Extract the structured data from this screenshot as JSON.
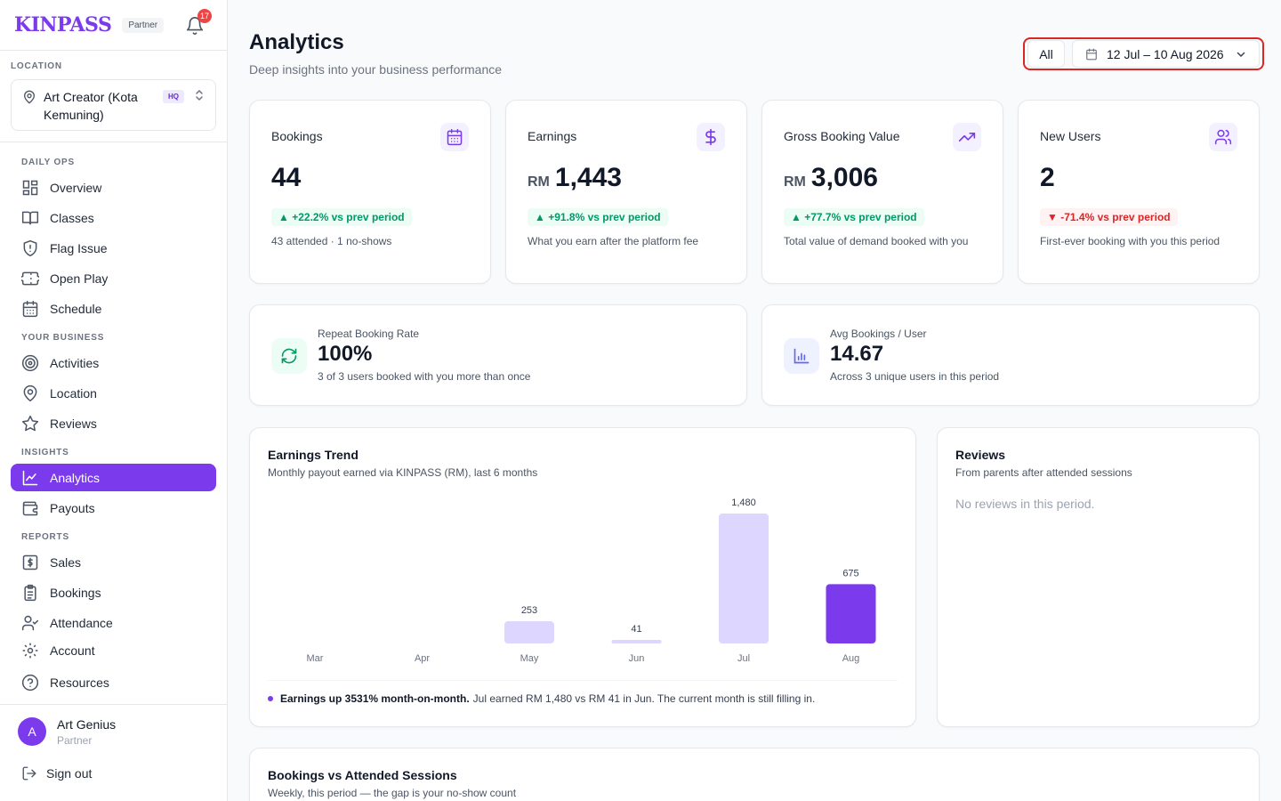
{
  "brand": {
    "logo_text": "KINPASS",
    "badge": "Partner",
    "notification_count": "17"
  },
  "location": {
    "section_label": "LOCATION",
    "name": "Art Creator (Kota Kemuning)",
    "badge": "HQ"
  },
  "nav": {
    "daily_ops_label": "DAILY OPS",
    "your_business_label": "YOUR BUSINESS",
    "insights_label": "INSIGHTS",
    "reports_label": "REPORTS",
    "items": [
      {
        "label": "Overview"
      },
      {
        "label": "Classes"
      },
      {
        "label": "Flag Issue"
      },
      {
        "label": "Open Play"
      },
      {
        "label": "Schedule"
      },
      {
        "label": "Activities"
      },
      {
        "label": "Location"
      },
      {
        "label": "Reviews"
      },
      {
        "label": "Analytics"
      },
      {
        "label": "Payouts"
      },
      {
        "label": "Sales"
      },
      {
        "label": "Bookings"
      },
      {
        "label": "Attendance"
      },
      {
        "label": "Account"
      },
      {
        "label": "Resources"
      }
    ]
  },
  "user": {
    "initial": "A",
    "name": "Art Genius",
    "role": "Partner",
    "signout_label": "Sign out"
  },
  "header": {
    "title": "Analytics",
    "subtitle": "Deep insights into your business performance"
  },
  "filters": {
    "all_label": "All",
    "date_range": "12 Jul – 10 Aug 2026"
  },
  "kpis": [
    {
      "title": "Bookings",
      "unit": "",
      "value": "44",
      "delta": "▲ +22.2% vs prev period",
      "direction": "up",
      "note": "43 attended · 1 no-shows",
      "icon": "calendar-icon"
    },
    {
      "title": "Earnings",
      "unit": "RM",
      "value": "1,443",
      "delta": "▲ +91.8% vs prev period",
      "direction": "up",
      "note": "What you earn after the platform fee",
      "icon": "dollar-icon"
    },
    {
      "title": "Gross Booking Value",
      "unit": "RM",
      "value": "3,006",
      "delta": "▲ +77.7% vs prev period",
      "direction": "up",
      "note": "Total value of demand booked with you",
      "icon": "trending-up-icon"
    },
    {
      "title": "New Users",
      "unit": "",
      "value": "2",
      "delta": "▼ -71.4% vs prev period",
      "direction": "down",
      "note": "First-ever booking with you this period",
      "icon": "users-icon"
    }
  ],
  "stats": [
    {
      "label": "Repeat Booking Rate",
      "value": "100%",
      "note": "3 of 3 users booked with you more than once",
      "icon": "refresh-icon"
    },
    {
      "label": "Avg Bookings / User",
      "value": "14.67",
      "note": "Across 3 unique users in this period",
      "icon": "bar-chart-icon"
    }
  ],
  "earnings_trend": {
    "title": "Earnings Trend",
    "subtitle": "Monthly payout earned via KINPASS (RM), last 6 months",
    "insight_bold": "Earnings up 3531% month-on-month.",
    "insight_text": "Jul earned RM 1,480 vs RM 41 in Jun. The current month is still filling in."
  },
  "reviews_panel": {
    "title": "Reviews",
    "subtitle": "From parents after attended sessions",
    "empty": "No reviews in this period."
  },
  "bookings_panel": {
    "title": "Bookings vs Attended Sessions",
    "subtitle": "Weekly, this period — the gap is your no-show count"
  },
  "chart_data": {
    "type": "bar",
    "title": "Earnings Trend",
    "categories": [
      "Mar",
      "Apr",
      "May",
      "Jun",
      "Jul",
      "Aug"
    ],
    "values": [
      0,
      0,
      253,
      41,
      1480,
      675
    ],
    "value_labels": [
      "",
      "",
      "253",
      "41",
      "1,480",
      "675"
    ],
    "ylim": [
      0,
      1480
    ],
    "grid": false,
    "bar_color": "#ddd6fe",
    "current_bar_color": "#7c3aed"
  },
  "colors": {
    "accent": "#7c3aed",
    "positive": "#059669",
    "negative": "#dc2626"
  }
}
